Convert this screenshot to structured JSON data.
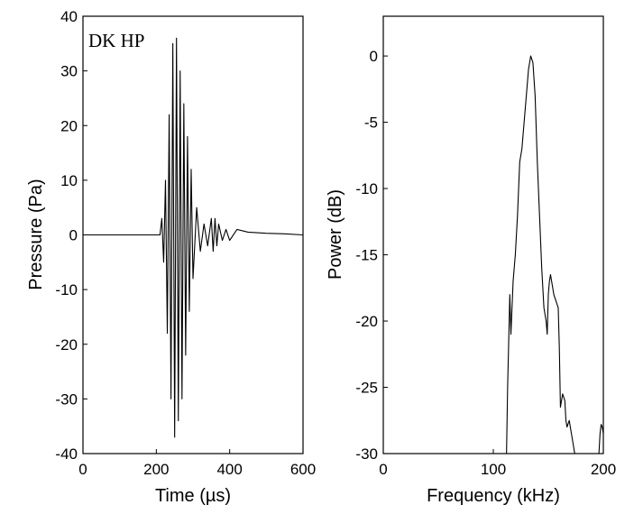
{
  "chart_data": [
    {
      "type": "line",
      "annotation": "DK HP",
      "xlabel": "Time (µs)",
      "ylabel": "Pressure (Pa)",
      "xlim": [
        0,
        600
      ],
      "ylim": [
        -40,
        40
      ],
      "xticks": [
        0,
        200,
        400,
        600
      ],
      "yticks": [
        -40,
        -30,
        -20,
        -10,
        0,
        10,
        20,
        30,
        40
      ],
      "grid": false,
      "series": [
        {
          "description_of_shape": "pressure waveform",
          "x": [
            0,
            210,
            215,
            220,
            225,
            230,
            235,
            240,
            245,
            250,
            255,
            260,
            265,
            270,
            275,
            280,
            285,
            290,
            295,
            300,
            310,
            320,
            330,
            340,
            350,
            355,
            360,
            365,
            370,
            380,
            390,
            400,
            420,
            450,
            500,
            550,
            600
          ],
          "y": [
            0,
            0,
            3,
            -5,
            10,
            -18,
            22,
            -30,
            35,
            -37,
            36,
            -34,
            30,
            -30,
            24,
            -22,
            18,
            -14,
            12,
            -8,
            5,
            -3,
            2,
            -2,
            3,
            -3,
            3,
            -2,
            2,
            -1,
            1,
            -1,
            1,
            0.5,
            0.3,
            0.2,
            0
          ]
        }
      ]
    },
    {
      "type": "line",
      "xlabel": "Frequency (kHz)",
      "ylabel": "Power (dB)",
      "xlim": [
        0,
        200
      ],
      "ylim": [
        -30,
        3
      ],
      "xticks": [
        0,
        100,
        200
      ],
      "yticks": [
        -30,
        -25,
        -20,
        -15,
        -10,
        -5,
        0
      ],
      "grid": false,
      "series": [
        {
          "x": [
            112,
            113,
            115,
            116,
            117,
            118,
            119,
            120,
            122,
            124,
            126,
            128,
            130,
            132,
            134,
            136,
            138,
            140,
            142,
            144,
            146,
            148,
            149,
            150,
            151,
            152,
            153,
            155,
            157,
            159,
            160,
            161,
            163,
            165,
            166,
            167,
            169,
            172,
            174
          ],
          "y": [
            -30,
            -25,
            -18,
            -21,
            -19,
            -17,
            -16,
            -15,
            -12,
            -8,
            -7,
            -5,
            -3,
            -1,
            0,
            -0.5,
            -3,
            -8,
            -12,
            -16,
            -19,
            -20,
            -21,
            -18,
            -17,
            -16.5,
            -17,
            -18,
            -18.5,
            -19,
            -22,
            -26.5,
            -25.5,
            -26,
            -27.5,
            -28,
            -27.5,
            -29,
            -30
          ]
        },
        {
          "x": [
            196,
            197,
            198,
            199,
            200
          ],
          "y": [
            -30,
            -28.5,
            -27.8,
            -28,
            -28.5
          ]
        }
      ]
    }
  ]
}
